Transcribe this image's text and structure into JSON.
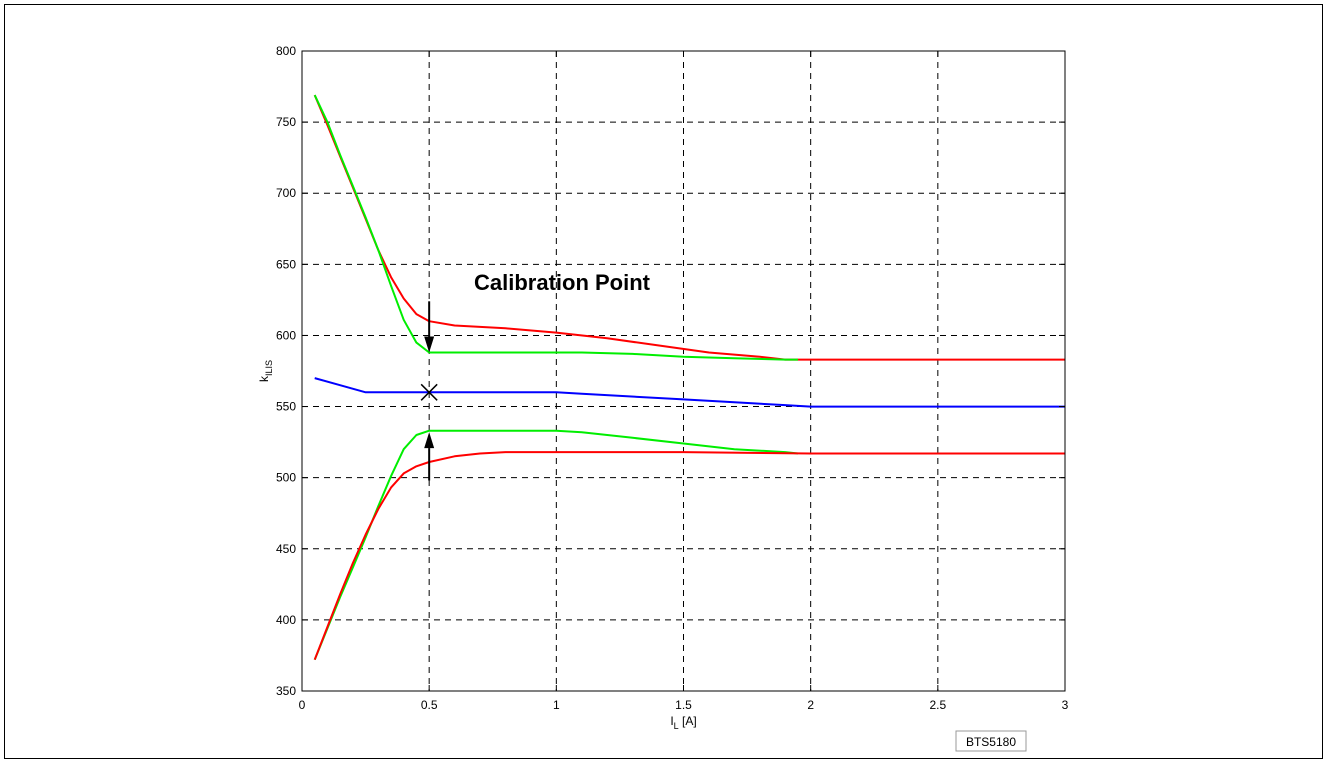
{
  "chart_data": {
    "type": "line",
    "xlabel": {
      "main": "I",
      "sub": "L",
      "unit": " [A]"
    },
    "ylabel": {
      "main": "k",
      "sub": "ILIS"
    },
    "xlim": [
      0,
      3
    ],
    "ylim": [
      350,
      800
    ],
    "x_ticks": [
      "0",
      "0.5",
      "1",
      "1.5",
      "2",
      "2.5",
      "3"
    ],
    "x_tick_values": [
      0,
      0.5,
      1,
      1.5,
      2,
      2.5,
      3
    ],
    "y_ticks": [
      "350",
      "400",
      "450",
      "500",
      "550",
      "600",
      "650",
      "700",
      "750",
      "800"
    ],
    "y_tick_values": [
      350,
      400,
      450,
      500,
      550,
      600,
      650,
      700,
      750,
      800
    ],
    "grid": true,
    "annotation": "Calibration Point",
    "source_box": "BTS5180",
    "marker": {
      "x": 0.5,
      "y": 560,
      "symbol": "x"
    },
    "arrows": [
      {
        "x": 0.5,
        "from_y": 624,
        "to_y": 588
      },
      {
        "x": 0.5,
        "from_y": 498,
        "to_y": 532
      }
    ],
    "series": [
      {
        "color": "#ff0000",
        "x": [
          0.05,
          0.1,
          0.15,
          0.2,
          0.25,
          0.3,
          0.35,
          0.4,
          0.45,
          0.5,
          0.6,
          0.8,
          1.0,
          1.2,
          1.4,
          1.6,
          1.8,
          1.9,
          2.0,
          2.5,
          3.0
        ],
        "y": [
          769,
          748,
          726,
          704,
          682,
          660,
          641,
          626,
          615,
          610,
          607,
          605,
          602,
          598,
          593,
          588,
          585,
          583,
          583,
          583,
          583
        ]
      },
      {
        "color": "#00ee00",
        "x": [
          0.05,
          0.1,
          0.15,
          0.2,
          0.25,
          0.3,
          0.35,
          0.4,
          0.45,
          0.5,
          0.6,
          0.8,
          1.0,
          1.1,
          1.3,
          1.5,
          1.7,
          1.9,
          1.95
        ],
        "y": [
          769,
          750,
          727,
          705,
          683,
          660,
          635,
          611,
          595,
          588,
          588,
          588,
          588,
          588,
          587,
          585,
          584,
          583,
          583
        ]
      },
      {
        "color": "#0000ff",
        "x": [
          0.05,
          0.15,
          0.25,
          0.5,
          1.0,
          1.1,
          1.5,
          1.7,
          1.9,
          2.0,
          2.5,
          3.0
        ],
        "y": [
          570,
          565,
          560,
          560,
          560,
          559,
          555,
          553,
          551,
          550,
          550,
          550
        ]
      },
      {
        "color": "#00ee00",
        "x": [
          0.05,
          0.1,
          0.15,
          0.2,
          0.25,
          0.3,
          0.35,
          0.4,
          0.45,
          0.5,
          0.6,
          0.8,
          1.0,
          1.1,
          1.3,
          1.5,
          1.7,
          1.9,
          1.95
        ],
        "y": [
          372,
          394,
          416,
          437,
          458,
          480,
          501,
          520,
          530,
          533,
          533,
          533,
          533,
          532,
          528,
          524,
          520,
          518,
          517
        ]
      },
      {
        "color": "#ff0000",
        "x": [
          0.05,
          0.1,
          0.15,
          0.2,
          0.25,
          0.3,
          0.35,
          0.4,
          0.45,
          0.5,
          0.6,
          0.7,
          0.8,
          1.0,
          1.5,
          2.0,
          2.5,
          3.0
        ],
        "y": [
          372,
          395,
          418,
          440,
          460,
          478,
          493,
          503,
          508,
          511,
          515,
          517,
          518,
          518,
          518,
          517,
          517,
          517
        ]
      }
    ]
  }
}
